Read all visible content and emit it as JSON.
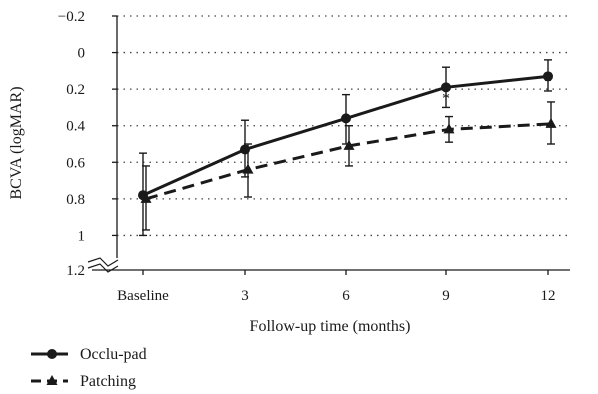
{
  "chart_data": {
    "type": "line",
    "xlabel": "Follow-up time (months)",
    "ylabel": "BCVA (logMAR)",
    "categories": [
      "Baseline",
      "3",
      "6",
      "9",
      "12"
    ],
    "y_tick_labels": [
      "−0.2",
      "0",
      "0.2",
      "0.4",
      "0.6",
      "0.8",
      "1",
      "1.2"
    ],
    "y_tick_values": [
      -0.2,
      0,
      0.2,
      0.4,
      0.6,
      0.8,
      1.0,
      1.2
    ],
    "ylim": [
      -0.2,
      1.2
    ],
    "y_axis_inverted": true,
    "y_axis_break_at": 1.2,
    "grid": "dotted-horizontal",
    "legend_placement": "bottom-left",
    "series": [
      {
        "name": "Occlu-pad",
        "line_style": "solid",
        "marker": "circle",
        "color": "#1a1a1a",
        "values": [
          0.78,
          0.53,
          0.36,
          0.19,
          0.13
        ],
        "error_low": [
          0.55,
          0.37,
          0.23,
          0.08,
          0.04
        ],
        "error_high": [
          1.0,
          0.68,
          0.5,
          0.3,
          0.21
        ],
        "annotations": [
          "",
          "",
          "",
          "*",
          "*"
        ]
      },
      {
        "name": "Patching",
        "line_style": "dashed",
        "marker": "triangle",
        "color": "#1a1a1a",
        "values": [
          0.8,
          0.64,
          0.51,
          0.42,
          0.39
        ],
        "error_low": [
          0.62,
          0.5,
          0.4,
          0.35,
          0.27
        ],
        "error_high": [
          0.97,
          0.79,
          0.62,
          0.49,
          0.5
        ]
      }
    ]
  }
}
